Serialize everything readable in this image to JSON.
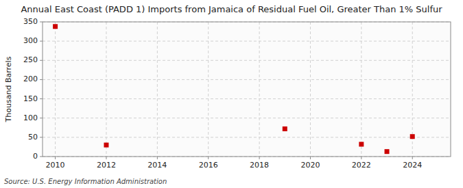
{
  "chart_data": {
    "type": "scatter",
    "title": "Annual East Coast (PADD 1) Imports from Jamaica of Residual Fuel Oil, Greater Than 1% Sulfur",
    "ylabel": "Thousand Barrels",
    "source": "Source: U.S. Energy Information Administration",
    "x": [
      2010,
      2012,
      2019,
      2022,
      2023,
      2024
    ],
    "values": [
      338,
      30,
      72,
      32,
      13,
      52
    ],
    "color": "#cc0000",
    "marker": "square",
    "xlim": [
      2009.5,
      2025.5
    ],
    "ylim": [
      0,
      350
    ],
    "xticks": [
      2010,
      2012,
      2014,
      2016,
      2018,
      2020,
      2022,
      2024
    ],
    "yticks": [
      0,
      50,
      100,
      150,
      200,
      250,
      300,
      350
    ],
    "grid": true
  }
}
